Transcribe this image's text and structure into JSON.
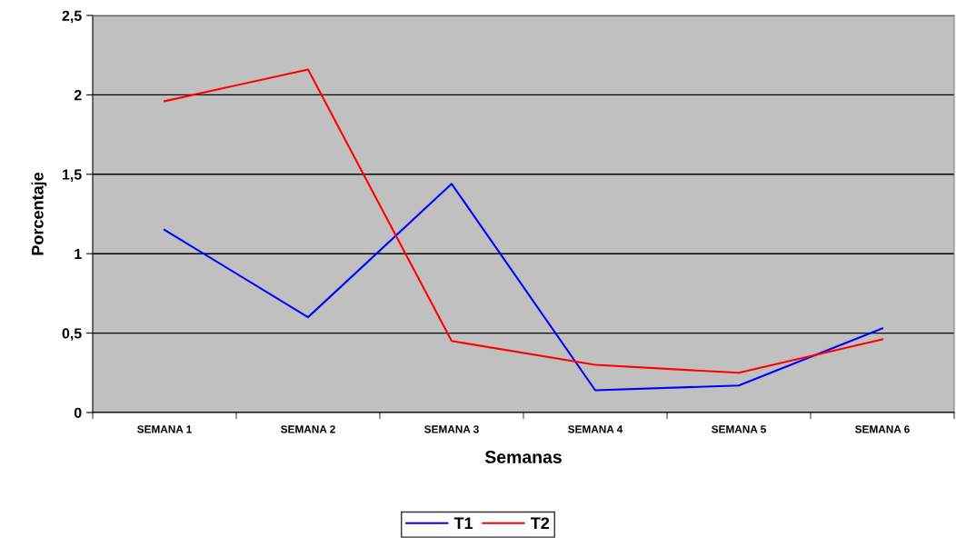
{
  "chart_data": {
    "type": "line",
    "xlabel": "Semanas",
    "ylabel": "Porcentaje",
    "categories": [
      "SEMANA 1",
      "SEMANA 2",
      "SEMANA 3",
      "SEMANA 4",
      "SEMANA 5",
      "SEMANA 6"
    ],
    "series": [
      {
        "name": "T1",
        "color": "#0000ff",
        "values": [
          1.15,
          0.6,
          1.44,
          0.14,
          0.17,
          0.53
        ]
      },
      {
        "name": "T2",
        "color": "#ff0000",
        "values": [
          1.96,
          2.16,
          0.45,
          0.3,
          0.25,
          0.46
        ]
      }
    ],
    "ylim": [
      0,
      2.5
    ],
    "yticks": [
      0,
      {
        "value": 0.5,
        "label": "0,5"
      },
      1,
      {
        "value": 1.5,
        "label": "1,5"
      },
      2,
      {
        "value": 2.5,
        "label": "2,5"
      }
    ],
    "grid": "y",
    "legend": "bottom",
    "marker": "none",
    "line_style": "solid"
  }
}
